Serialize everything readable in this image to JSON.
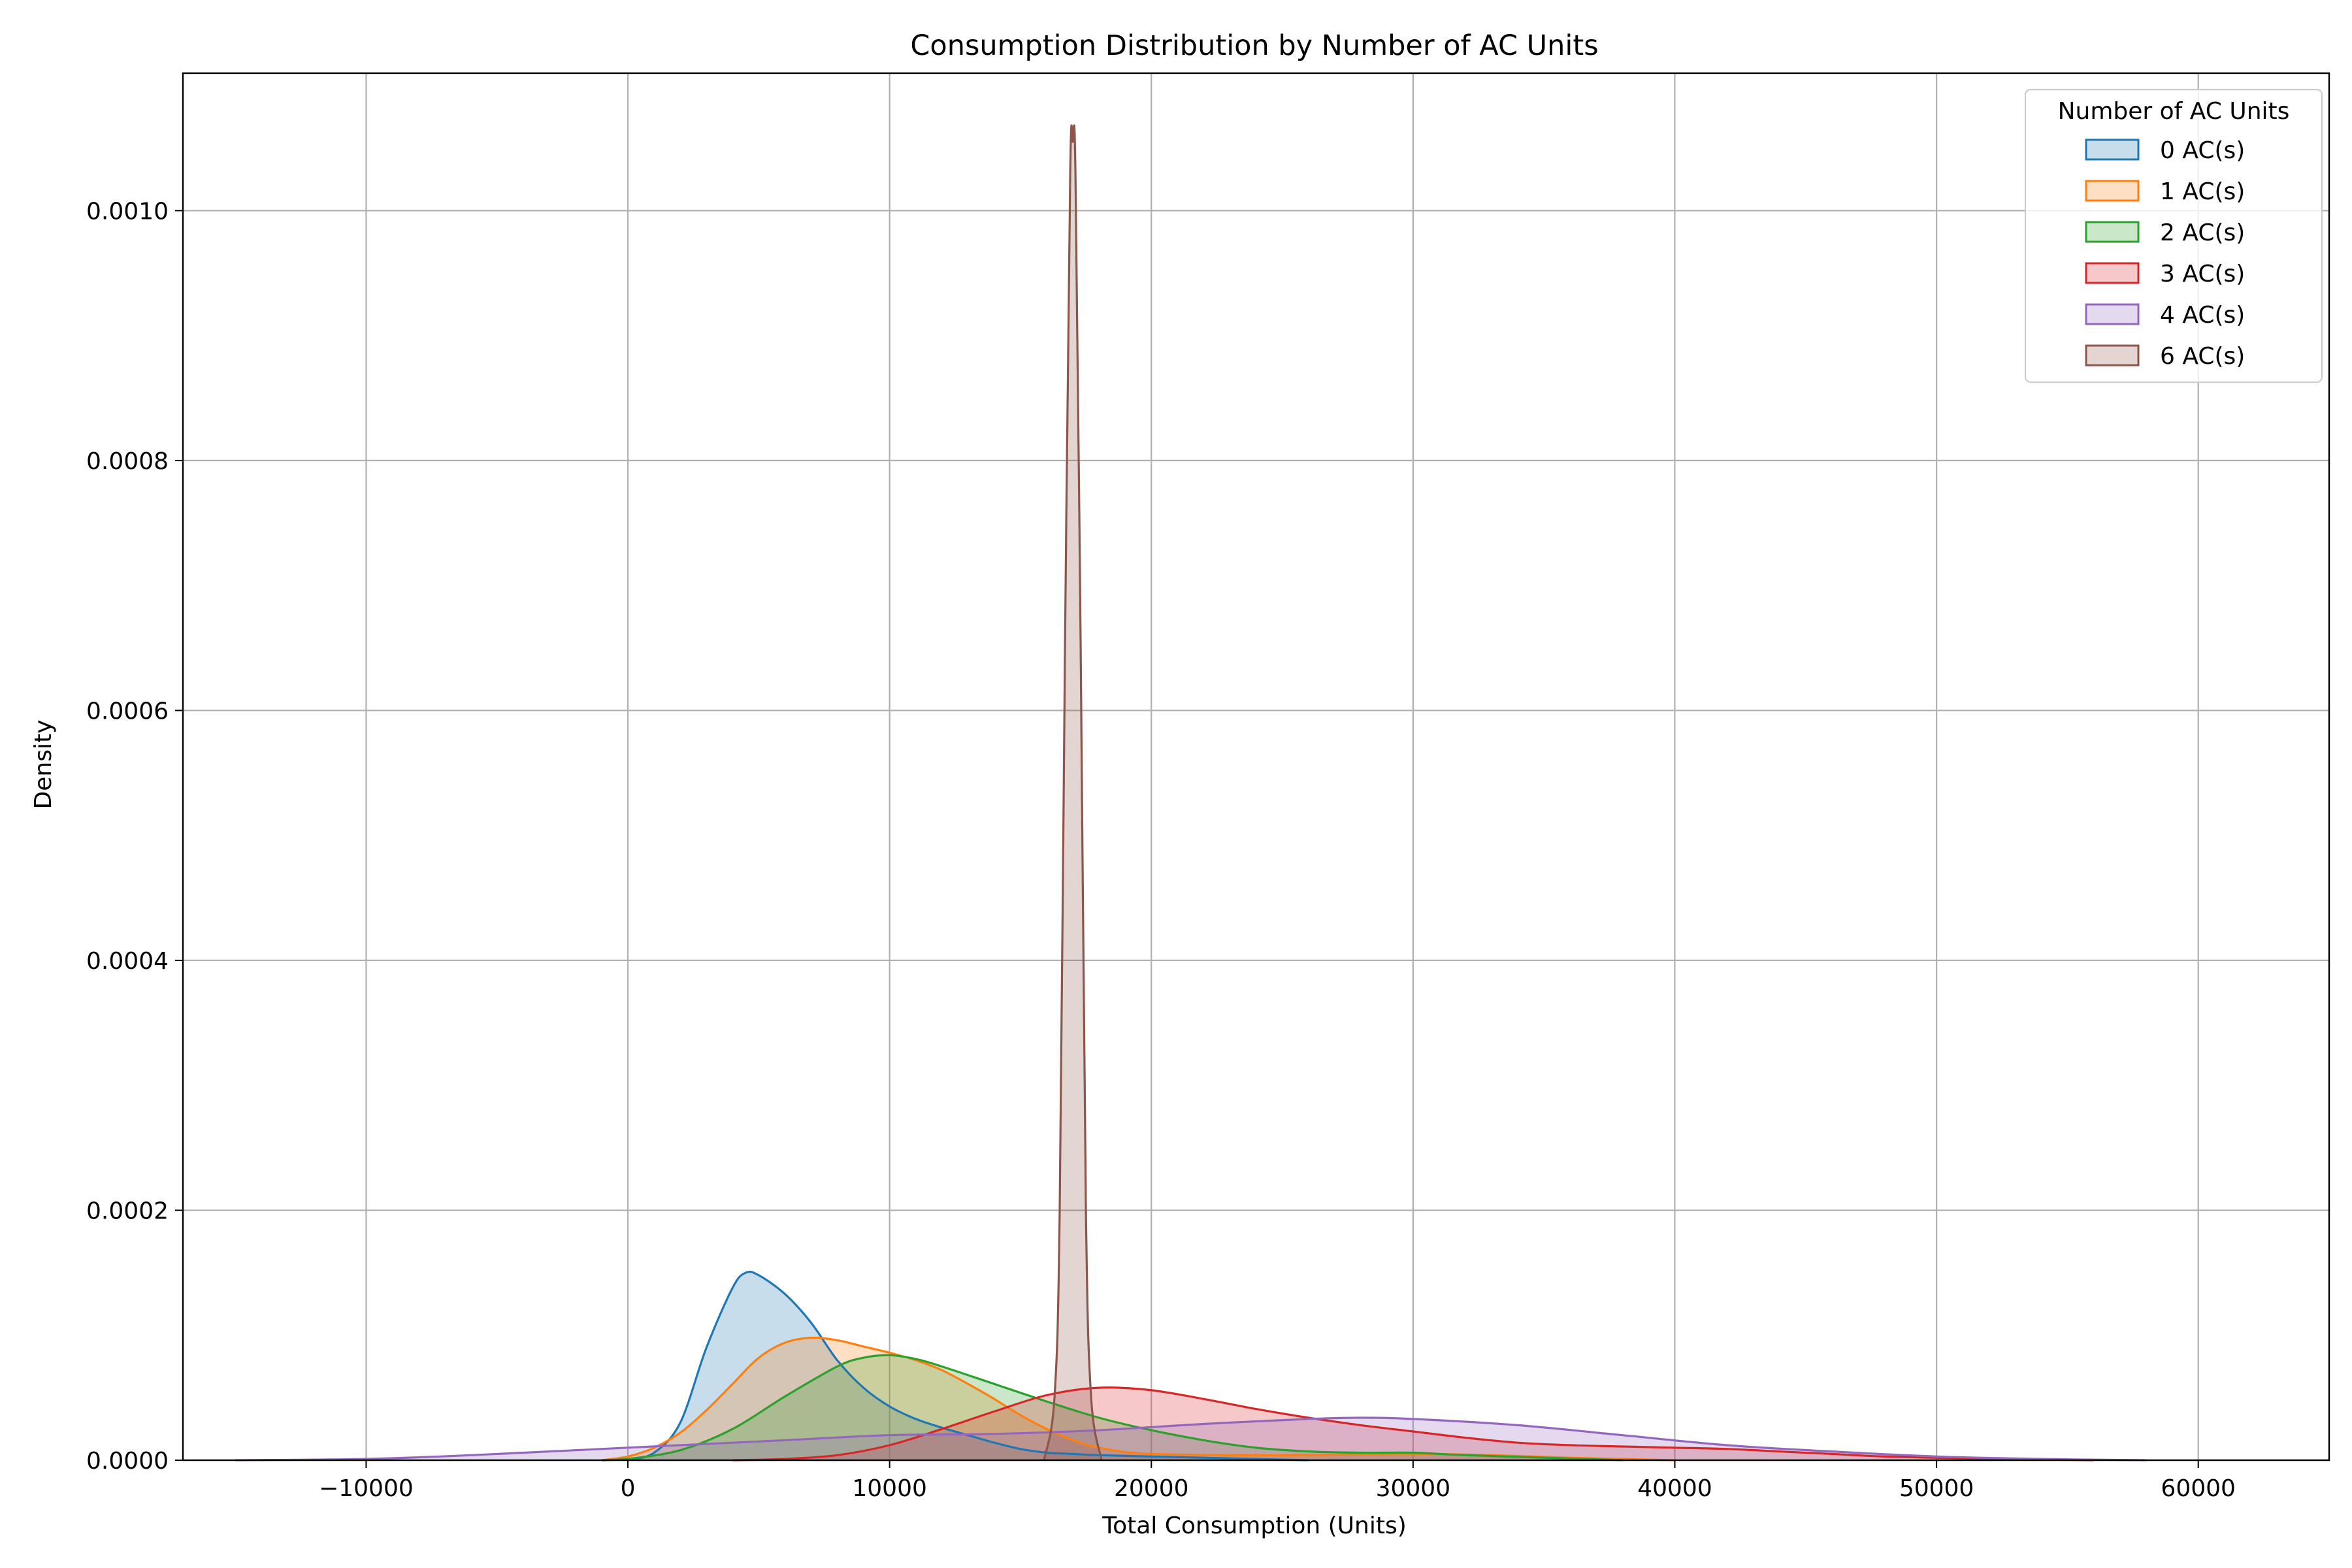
{
  "chart_data": {
    "type": "area",
    "title": "Consumption Distribution by Number of AC Units",
    "xlabel": "Total Consumption (Units)",
    "ylabel": "Density",
    "xlim": [
      -17000,
      65000
    ],
    "ylim": [
      0,
      0.00111
    ],
    "xticks": [
      -10000,
      0,
      10000,
      20000,
      30000,
      40000,
      50000,
      60000
    ],
    "xtick_labels": [
      "−10000",
      "0",
      "10000",
      "20000",
      "30000",
      "40000",
      "50000",
      "60000"
    ],
    "yticks": [
      0,
      0.0002,
      0.0004,
      0.0006,
      0.0008,
      0.001
    ],
    "ytick_labels": [
      "0.0000",
      "0.0002",
      "0.0004",
      "0.0006",
      "0.0008",
      "0.0010"
    ],
    "grid": true,
    "legend": {
      "title": "Number of AC Units",
      "placement": "top-right"
    },
    "series": [
      {
        "name": "0 AC(s)",
        "color": "#1f77b4",
        "points": [
          [
            0,
            0
          ],
          [
            1000,
            6e-06
          ],
          [
            2000,
            3e-05
          ],
          [
            3000,
            9e-05
          ],
          [
            4000,
            0.000138
          ],
          [
            4500,
            0.00015
          ],
          [
            5000,
            0.000148
          ],
          [
            6000,
            0.000133
          ],
          [
            7000,
            0.00011
          ],
          [
            8000,
            8e-05
          ],
          [
            9000,
            5.8e-05
          ],
          [
            10000,
            4.3e-05
          ],
          [
            11000,
            3.3e-05
          ],
          [
            12000,
            2.6e-05
          ],
          [
            13000,
            2e-05
          ],
          [
            14000,
            1.4e-05
          ],
          [
            15000,
            9e-06
          ],
          [
            16000,
            6e-06
          ],
          [
            17000,
            5e-06
          ],
          [
            18000,
            4e-06
          ],
          [
            20000,
            3e-06
          ],
          [
            22000,
            2e-06
          ],
          [
            24000,
            1e-06
          ],
          [
            26000,
            0
          ]
        ]
      },
      {
        "name": "1 AC(s)",
        "color": "#ff7f0e",
        "points": [
          [
            -1000,
            0
          ],
          [
            0,
            3e-06
          ],
          [
            1000,
            1e-05
          ],
          [
            2000,
            2.2e-05
          ],
          [
            3000,
            4e-05
          ],
          [
            4000,
            6.1e-05
          ],
          [
            5000,
            8.2e-05
          ],
          [
            6000,
            9.4e-05
          ],
          [
            7000,
            9.8e-05
          ],
          [
            8000,
            9.6e-05
          ],
          [
            9000,
            9.1e-05
          ],
          [
            10000,
            8.6e-05
          ],
          [
            11000,
            8e-05
          ],
          [
            12000,
            7.2e-05
          ],
          [
            13000,
            6.1e-05
          ],
          [
            14000,
            4.9e-05
          ],
          [
            15000,
            3.6e-05
          ],
          [
            16000,
            2.5e-05
          ],
          [
            17000,
            1.6e-05
          ],
          [
            18000,
            1e-05
          ],
          [
            20000,
            5e-06
          ],
          [
            25000,
            4e-06
          ],
          [
            30000,
            5e-06
          ],
          [
            33000,
            4e-06
          ],
          [
            36000,
            2e-06
          ],
          [
            40000,
            0
          ]
        ]
      },
      {
        "name": "2 AC(s)",
        "color": "#2ca02c",
        "points": [
          [
            -1000,
            0
          ],
          [
            0,
            1e-06
          ],
          [
            2000,
            8e-06
          ],
          [
            4000,
            2.5e-05
          ],
          [
            6000,
            5.1e-05
          ],
          [
            8000,
            7.5e-05
          ],
          [
            9000,
            8.2e-05
          ],
          [
            10000,
            8.4e-05
          ],
          [
            11000,
            8.1e-05
          ],
          [
            12000,
            7.5e-05
          ],
          [
            14000,
            6.1e-05
          ],
          [
            16000,
            4.7e-05
          ],
          [
            18000,
            3.4e-05
          ],
          [
            20000,
            2.4e-05
          ],
          [
            22000,
            1.6e-05
          ],
          [
            24000,
            1e-05
          ],
          [
            26000,
            7e-06
          ],
          [
            28000,
            6e-06
          ],
          [
            30000,
            6e-06
          ],
          [
            32000,
            4e-06
          ],
          [
            35000,
            2e-06
          ],
          [
            38000,
            0
          ]
        ]
      },
      {
        "name": "3 AC(s)",
        "color": "#d62728",
        "points": [
          [
            4000,
            0
          ],
          [
            6000,
            1e-06
          ],
          [
            8000,
            4e-06
          ],
          [
            10000,
            1.2e-05
          ],
          [
            12000,
            2.5e-05
          ],
          [
            14000,
            3.9e-05
          ],
          [
            16000,
            5.2e-05
          ],
          [
            18000,
            5.8e-05
          ],
          [
            20000,
            5.6e-05
          ],
          [
            22000,
            4.9e-05
          ],
          [
            24000,
            4.1e-05
          ],
          [
            26000,
            3.4e-05
          ],
          [
            28000,
            2.8e-05
          ],
          [
            30000,
            2.3e-05
          ],
          [
            32000,
            1.8e-05
          ],
          [
            34000,
            1.4e-05
          ],
          [
            36000,
            1.2e-05
          ],
          [
            38000,
            1.1e-05
          ],
          [
            40000,
            1e-05
          ],
          [
            42000,
            9e-06
          ],
          [
            44000,
            7e-06
          ],
          [
            46000,
            5e-06
          ],
          [
            48000,
            3e-06
          ],
          [
            52000,
            1e-06
          ],
          [
            56000,
            0
          ]
        ]
      },
      {
        "name": "4 AC(s)",
        "color": "#9467bd",
        "points": [
          [
            -15000,
            0
          ],
          [
            -10000,
            1e-06
          ],
          [
            -6000,
            4e-06
          ],
          [
            -2000,
            8e-06
          ],
          [
            2000,
            1.2e-05
          ],
          [
            6000,
            1.6e-05
          ],
          [
            10000,
            2e-05
          ],
          [
            14000,
            2.1e-05
          ],
          [
            18000,
            2.4e-05
          ],
          [
            22000,
            2.9e-05
          ],
          [
            26000,
            3.3e-05
          ],
          [
            28000,
            3.4e-05
          ],
          [
            30000,
            3.3e-05
          ],
          [
            34000,
            2.8e-05
          ],
          [
            38000,
            2e-05
          ],
          [
            42000,
            1.2e-05
          ],
          [
            46000,
            7e-06
          ],
          [
            50000,
            3e-06
          ],
          [
            54000,
            1e-06
          ],
          [
            58000,
            0
          ]
        ]
      },
      {
        "name": "6 AC(s)",
        "color": "#8c564b",
        "points": [
          [
            15900,
            0
          ],
          [
            16300,
            5e-05
          ],
          [
            16500,
            0.0002
          ],
          [
            16700,
            0.00065
          ],
          [
            16900,
            0.00103
          ],
          [
            17000,
            0.001055
          ],
          [
            17100,
            0.00103
          ],
          [
            17300,
            0.00065
          ],
          [
            17500,
            0.0002
          ],
          [
            17700,
            5e-05
          ],
          [
            18100,
            0
          ]
        ]
      }
    ]
  }
}
